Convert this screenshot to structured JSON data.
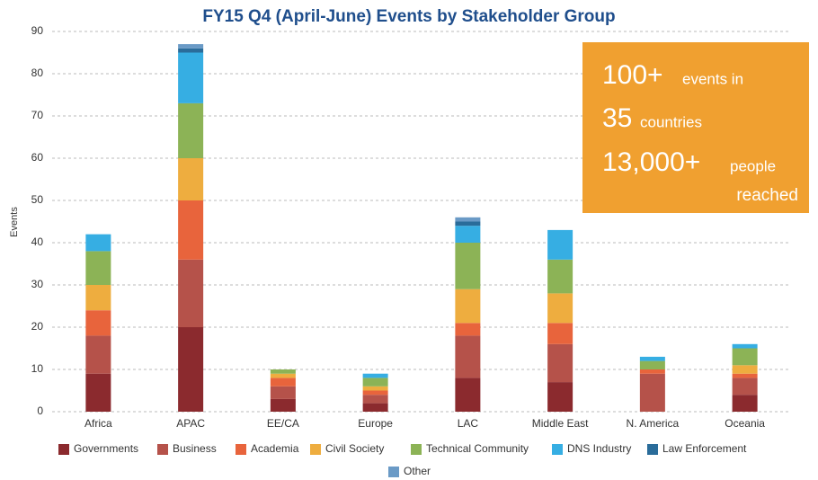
{
  "chart_data": {
    "type": "stacked_bar",
    "title": "FY15 Q4 (April-June) Events by Stakeholder Group",
    "y_label": "Events",
    "categories": [
      "Africa",
      "APAC",
      "EE/CA",
      "Europe",
      "LAC",
      "Middle East",
      "N. America",
      "Oceania"
    ],
    "series": [
      {
        "name": "Governments",
        "color": "#8b2a2e",
        "values": [
          9,
          20,
          3,
          2,
          8,
          7,
          0,
          4
        ]
      },
      {
        "name": "Business",
        "color": "#b5524a",
        "values": [
          9,
          16,
          3,
          2,
          10,
          9,
          9,
          4
        ]
      },
      {
        "name": "Academia",
        "color": "#e8643c",
        "values": [
          6,
          14,
          2,
          1,
          3,
          5,
          1,
          1
        ]
      },
      {
        "name": "Civil Society",
        "color": "#eead3f",
        "values": [
          6,
          10,
          1,
          1,
          8,
          7,
          0,
          2
        ]
      },
      {
        "name": "Technical Community",
        "color": "#8cb356",
        "values": [
          8,
          13,
          1,
          2,
          11,
          8,
          2,
          4
        ]
      },
      {
        "name": "DNS Industry",
        "color": "#36aee3",
        "values": [
          4,
          12,
          0,
          1,
          4,
          7,
          1,
          1
        ]
      },
      {
        "name": "Law Enforcement",
        "color": "#2a6c9a",
        "values": [
          0,
          1,
          0,
          0,
          1,
          0,
          0,
          0
        ]
      },
      {
        "name": "Other",
        "color": "#6a9ac6",
        "values": [
          0,
          1,
          0,
          0,
          1,
          0,
          0,
          0
        ]
      }
    ],
    "ylim": [
      0,
      90
    ],
    "yticks": [
      0,
      10,
      20,
      30,
      40,
      50,
      60,
      70,
      80,
      90
    ],
    "grid": true,
    "callout": [
      "100+",
      "events in",
      "35",
      "countries",
      "13,000+",
      "people",
      "reached"
    ],
    "callout_color": "#f0a030"
  }
}
